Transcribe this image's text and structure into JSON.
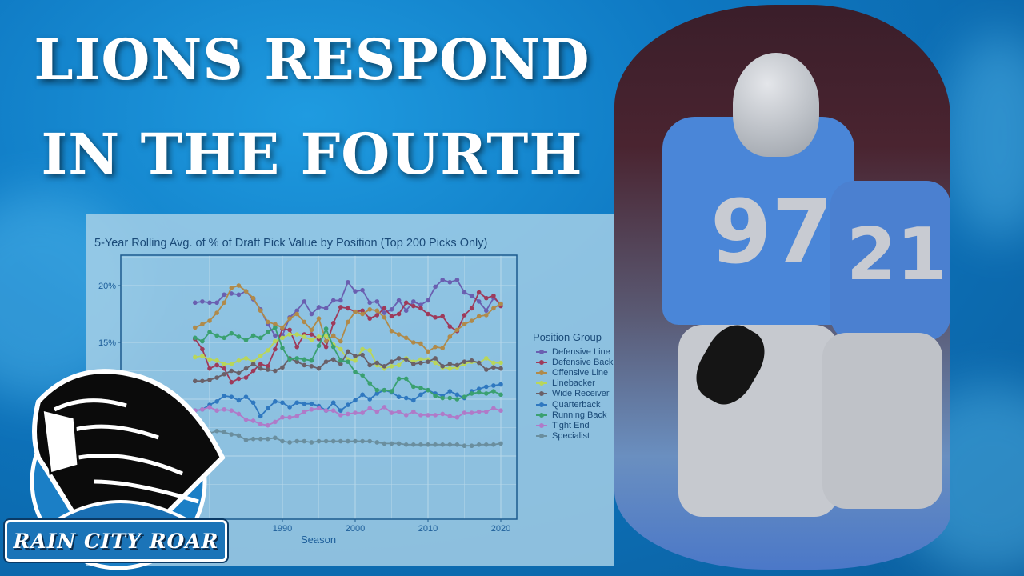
{
  "headline": {
    "line1": "LIONS RESPOND",
    "line2": "IN THE FOURTH"
  },
  "logo": {
    "text": "RAIN CITY ROAR",
    "icon": "roaring-lion-icon"
  },
  "photo": {
    "jersey_numbers": [
      "97",
      "21"
    ],
    "team_colors": {
      "blue": "#4a86d8",
      "silver": "#c6c9cf"
    }
  },
  "chart_data": {
    "type": "line",
    "title": "5-Year Rolling Avg. of % of Draft Pick Value by Position (Top 200 Picks Only)",
    "xlabel": "Season",
    "ylabel": "",
    "x_ticks": [
      "1990",
      "2000",
      "2010",
      "2020"
    ],
    "y_ticks": [
      "15%",
      "20%"
    ],
    "xlim": [
      1978,
      2020
    ],
    "ylim": [
      2,
      22.5
    ],
    "grid": true,
    "legend_title": "Position Group",
    "legend_position": "right",
    "x": [
      1978,
      1979,
      1980,
      1981,
      1982,
      1983,
      1984,
      1985,
      1986,
      1987,
      1988,
      1989,
      1990,
      1991,
      1992,
      1993,
      1994,
      1995,
      1996,
      1997,
      1998,
      1999,
      2000,
      2001,
      2002,
      2003,
      2004,
      2005,
      2006,
      2007,
      2008,
      2009,
      2010,
      2011,
      2012,
      2013,
      2014,
      2015,
      2016,
      2017,
      2018,
      2019,
      2020
    ],
    "series": [
      {
        "name": "Defensive Line",
        "color": "#6a5fb0",
        "values": [
          18.5,
          18.6,
          18.5,
          18.5,
          19.2,
          19.3,
          19.2,
          19.5,
          18.8,
          17.9,
          16.6,
          15.6,
          15.6,
          17.2,
          17.8,
          18.6,
          17.5,
          18.1,
          18.0,
          18.7,
          18.7,
          20.3,
          19.5,
          19.6,
          18.5,
          18.6,
          17.6,
          17.9,
          18.7,
          17.8,
          18.6,
          18.3,
          18.7,
          19.9,
          20.5,
          20.3,
          20.5,
          19.4,
          19.1,
          18.6,
          17.8,
          18.9,
          18.4
        ]
      },
      {
        "name": "Defensive Back",
        "color": "#9e3a5a",
        "values": [
          15.3,
          14.4,
          12.7,
          13.0,
          12.7,
          11.5,
          11.8,
          11.9,
          12.5,
          13.1,
          12.9,
          14.4,
          16.2,
          16.1,
          14.6,
          15.7,
          15.7,
          15.3,
          14.6,
          16.7,
          18.1,
          18.0,
          17.7,
          17.8,
          17.1,
          17.4,
          18.0,
          17.3,
          17.5,
          18.5,
          18.2,
          18.0,
          17.5,
          17.2,
          17.3,
          16.4,
          16.0,
          17.4,
          18.0,
          19.4,
          18.9,
          19.1,
          18.2
        ]
      },
      {
        "name": "Offensive Line",
        "color": "#b08a4a",
        "values": [
          16.3,
          16.6,
          16.9,
          17.6,
          18.5,
          19.8,
          20.0,
          19.5,
          18.9,
          17.8,
          16.8,
          16.6,
          16.3,
          17.1,
          17.5,
          16.8,
          16.1,
          17.1,
          15.1,
          15.6,
          15.1,
          16.8,
          17.7,
          17.5,
          17.9,
          17.8,
          17.2,
          16.0,
          15.7,
          15.4,
          15.0,
          14.9,
          14.2,
          14.6,
          14.5,
          15.5,
          16.1,
          16.6,
          16.9,
          17.3,
          17.4,
          18.0,
          18.4
        ]
      },
      {
        "name": "Linebacker",
        "color": "#b9d65a",
        "values": [
          13.7,
          13.8,
          13.5,
          13.4,
          13.1,
          13.1,
          13.4,
          13.6,
          13.3,
          13.8,
          14.3,
          15.1,
          15.4,
          15.7,
          15.7,
          15.5,
          15.2,
          15.5,
          15.6,
          14.8,
          14.4,
          13.5,
          13.4,
          14.4,
          14.3,
          13.0,
          12.7,
          12.9,
          13.0,
          13.6,
          13.3,
          13.5,
          13.5,
          13.2,
          12.8,
          12.7,
          12.8,
          13.1,
          13.3,
          13.2,
          13.6,
          13.2,
          13.2
        ]
      },
      {
        "name": "Wide Receiver",
        "color": "#6a6068",
        "values": [
          11.6,
          11.6,
          11.7,
          11.9,
          12.2,
          12.5,
          12.3,
          12.7,
          13.1,
          12.7,
          12.6,
          12.5,
          12.8,
          13.6,
          13.3,
          13.0,
          12.9,
          12.7,
          13.3,
          13.5,
          13.1,
          14.2,
          13.8,
          13.9,
          13.0,
          13.2,
          12.9,
          13.3,
          13.6,
          13.5,
          13.1,
          13.2,
          13.3,
          13.6,
          12.9,
          13.1,
          13.0,
          13.3,
          13.4,
          13.2,
          12.6,
          12.8,
          12.7
        ]
      },
      {
        "name": "Quarterback",
        "color": "#2f78c0",
        "values": [
          9.0,
          9.1,
          9.5,
          9.8,
          10.3,
          10.2,
          9.9,
          10.2,
          9.7,
          8.5,
          9.2,
          9.8,
          9.7,
          9.3,
          9.7,
          9.6,
          9.6,
          9.4,
          9.0,
          9.7,
          9.0,
          9.5,
          9.9,
          10.4,
          10.0,
          10.5,
          10.8,
          10.6,
          10.2,
          10.1,
          9.9,
          10.4,
          10.8,
          10.5,
          10.3,
          10.7,
          10.4,
          10.1,
          10.7,
          10.9,
          11.1,
          11.2,
          11.3
        ]
      },
      {
        "name": "Running Back",
        "color": "#3aa070",
        "values": [
          15.4,
          15.1,
          15.9,
          15.6,
          15.4,
          15.8,
          15.5,
          15.2,
          15.6,
          15.4,
          15.9,
          16.3,
          14.5,
          13.5,
          13.6,
          13.5,
          13.4,
          14.7,
          16.2,
          14.6,
          13.4,
          13.3,
          12.4,
          12.1,
          11.4,
          10.8,
          10.8,
          10.7,
          11.8,
          11.8,
          11.1,
          11.0,
          10.8,
          10.3,
          10.1,
          10.1,
          10.0,
          10.2,
          10.5,
          10.6,
          10.5,
          10.7,
          10.4
        ]
      },
      {
        "name": "Tight End",
        "color": "#b07ac8",
        "values": [
          9.0,
          9.1,
          9.3,
          9.0,
          9.1,
          9.0,
          8.7,
          8.2,
          8.1,
          7.8,
          7.7,
          8.0,
          8.4,
          8.4,
          8.5,
          8.9,
          9.1,
          9.2,
          9.0,
          9.0,
          8.6,
          8.7,
          8.8,
          8.8,
          9.2,
          8.9,
          9.3,
          8.8,
          8.9,
          8.6,
          8.9,
          8.6,
          8.6,
          8.6,
          8.7,
          8.5,
          8.4,
          8.8,
          8.8,
          8.9,
          8.9,
          9.2,
          9.0
        ]
      },
      {
        "name": "Specialist",
        "color": "#6a8e9e",
        "values": [
          6.8,
          6.9,
          7.0,
          7.2,
          7.1,
          6.9,
          6.8,
          6.4,
          6.5,
          6.5,
          6.5,
          6.6,
          6.3,
          6.2,
          6.3,
          6.3,
          6.2,
          6.3,
          6.3,
          6.3,
          6.3,
          6.3,
          6.3,
          6.3,
          6.3,
          6.2,
          6.1,
          6.1,
          6.1,
          6.0,
          6.0,
          6.0,
          6.0,
          6.0,
          6.0,
          6.0,
          6.0,
          5.9,
          5.9,
          6.0,
          6.0,
          6.0,
          6.1
        ]
      }
    ]
  }
}
